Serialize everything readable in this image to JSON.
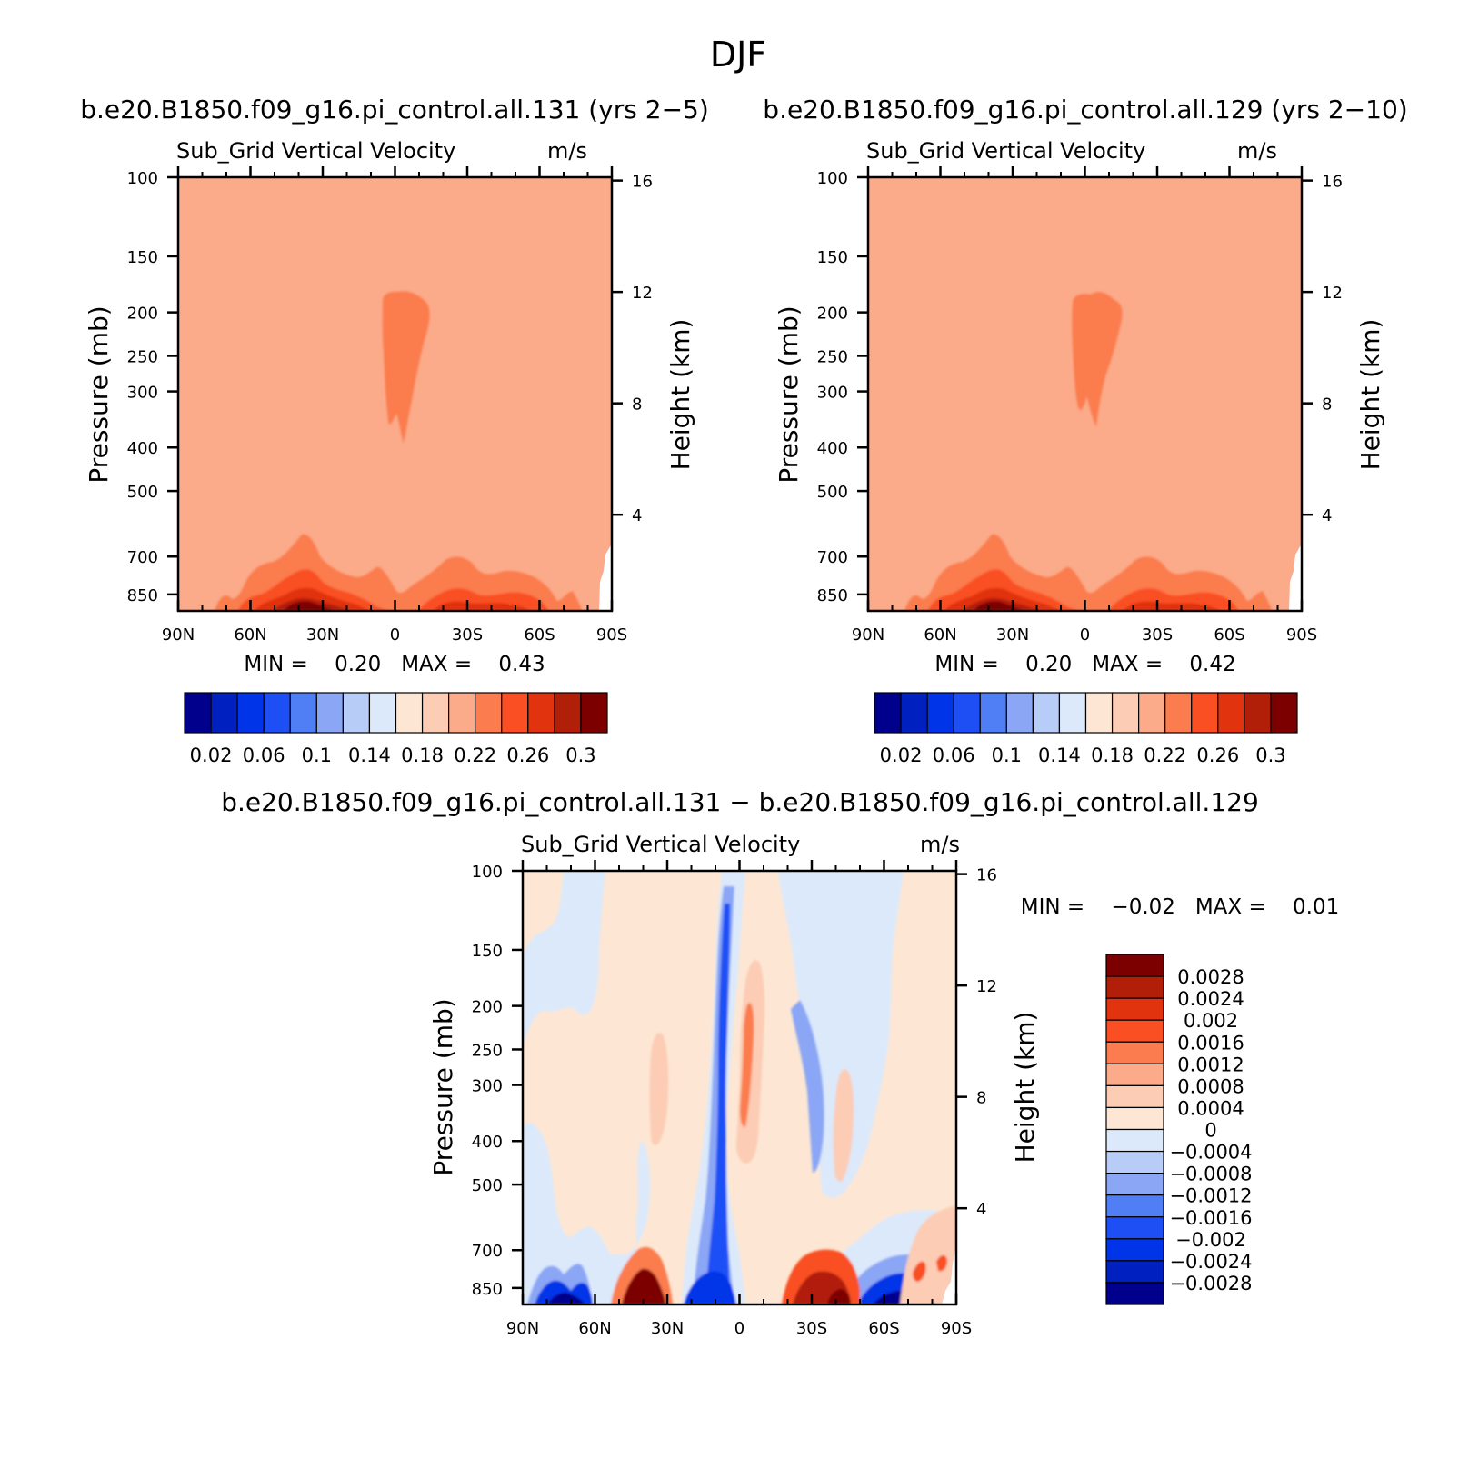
{
  "figure": {
    "title": "DJF"
  },
  "colors": {
    "seq_palette": [
      "#00008c",
      "#0020c0",
      "#0034e8",
      "#1e4ff5",
      "#4f7ef5",
      "#8aa6f5",
      "#b7cdf7",
      "#dbe9fb",
      "#fde7d4",
      "#fcccb4",
      "#fbab8a",
      "#fb7c4e",
      "#f94f22",
      "#e0330e",
      "#b21f08",
      "#7d0000"
    ],
    "div_palette": [
      "#00008c",
      "#0020c0",
      "#0034e8",
      "#1e4ff5",
      "#4f7ef5",
      "#8aa6f5",
      "#b7cdf7",
      "#dbe9fb",
      "#fde7d4",
      "#fcccb4",
      "#fbab8a",
      "#fb7c4e",
      "#f94f22",
      "#e0330e",
      "#b21f08",
      "#7d0000"
    ]
  },
  "panels": {
    "p1": {
      "case_title": "b.e20.B1850.f09_g16.pi_control.all.131 (yrs 2−5)",
      "left_string": "Sub_Grid Vertical Velocity",
      "right_string": "m/s",
      "min_max": "MIN =    0.20   MAX =    0.43"
    },
    "p2": {
      "case_title": "b.e20.B1850.f09_g16.pi_control.all.129 (yrs 2−10)",
      "left_string": "Sub_Grid Vertical Velocity",
      "right_string": "m/s",
      "min_max": "MIN =    0.20   MAX =    0.42"
    },
    "p3": {
      "case_title": "b.e20.B1850.f09_g16.pi_control.all.131 − b.e20.B1850.f09_g16.pi_control.all.129",
      "left_string": "Sub_Grid Vertical Velocity",
      "right_string": "m/s",
      "min_max": "MIN =    −0.02   MAX =    0.01"
    }
  },
  "chart_data": [
    {
      "type": "heatmap",
      "panel": "p1",
      "title": "b.e20.B1850.f09_g16.pi_control.all.131 (yrs 2−5)",
      "xlabel": "",
      "ylabel": "Pressure (mb)",
      "y2label": "Height (km)",
      "x_ticks": [
        "90N",
        "60N",
        "30N",
        "0",
        "30S",
        "60S",
        "90S"
      ],
      "x_tick_values": [
        90,
        60,
        30,
        0,
        -30,
        -60,
        -90
      ],
      "y_ticks": [
        100,
        150,
        200,
        250,
        300,
        400,
        500,
        700,
        850
      ],
      "y2_ticks": [
        16,
        12,
        8,
        4
      ],
      "ylim": [
        100,
        925
      ],
      "y_scale": "log",
      "colorbar_labels": [
        "0.02",
        "0.06",
        "0.1",
        "0.14",
        "0.18",
        "0.22",
        "0.26",
        "0.3"
      ],
      "min": 0.2,
      "max": 0.43,
      "background_value": 0.21,
      "features": [
        {
          "desc": "upper tropical maximum",
          "lat": 0,
          "p": [
            190,
            380
          ],
          "value": 0.23
        },
        {
          "desc": "NH subtropical boundary-layer maximum",
          "lat": 38,
          "p": [
            640,
            925
          ],
          "value": 0.31
        },
        {
          "desc": "SH midlatitude boundary-layer maximum",
          "lat": -45,
          "p": [
            690,
            925
          ],
          "value": 0.27
        }
      ]
    },
    {
      "type": "heatmap",
      "panel": "p2",
      "title": "b.e20.B1850.f09_g16.pi_control.all.129 (yrs 2−10)",
      "xlabel": "",
      "ylabel": "Pressure (mb)",
      "y2label": "Height (km)",
      "x_ticks": [
        "90N",
        "60N",
        "30N",
        "0",
        "30S",
        "60S",
        "90S"
      ],
      "x_tick_values": [
        90,
        60,
        30,
        0,
        -30,
        -60,
        -90
      ],
      "y_ticks": [
        100,
        150,
        200,
        250,
        300,
        400,
        500,
        700,
        850
      ],
      "y2_ticks": [
        16,
        12,
        8,
        4
      ],
      "ylim": [
        100,
        925
      ],
      "y_scale": "log",
      "colorbar_labels": [
        "0.02",
        "0.06",
        "0.1",
        "0.14",
        "0.18",
        "0.22",
        "0.26",
        "0.3"
      ],
      "min": 0.2,
      "max": 0.42,
      "background_value": 0.21,
      "features": [
        {
          "desc": "upper tropical maximum",
          "lat": 0,
          "p": [
            190,
            360
          ],
          "value": 0.23
        },
        {
          "desc": "NH subtropical boundary-layer maximum",
          "lat": 38,
          "p": [
            640,
            925
          ],
          "value": 0.31
        },
        {
          "desc": "SH midlatitude boundary-layer maximum",
          "lat": -45,
          "p": [
            690,
            925
          ],
          "value": 0.27
        }
      ]
    },
    {
      "type": "heatmap",
      "panel": "p3",
      "title": "b.e20.B1850.f09_g16.pi_control.all.131 − b.e20.B1850.f09_g16.pi_control.all.129",
      "xlabel": "",
      "ylabel": "Pressure (mb)",
      "y2label": "Height (km)",
      "x_ticks": [
        "90N",
        "60N",
        "30N",
        "0",
        "30S",
        "60S",
        "90S"
      ],
      "x_tick_values": [
        90,
        60,
        30,
        0,
        -30,
        -60,
        -90
      ],
      "y_ticks": [
        100,
        150,
        200,
        250,
        300,
        400,
        500,
        700,
        850
      ],
      "y2_ticks": [
        16,
        12,
        8,
        4
      ],
      "ylim": [
        100,
        925
      ],
      "y_scale": "log",
      "colorbar_labels": [
        "0.0028",
        "0.0024",
        "0.002",
        "0.0016",
        "0.0012",
        "0.0008",
        "0.0004",
        "0",
        "−0.0004",
        "−0.0008",
        "−0.0012",
        "−0.0016",
        "−0.002",
        "−0.0024",
        "−0.0028"
      ],
      "min": -0.02,
      "max": 0.01,
      "features": [
        {
          "desc": "positive surface anomaly",
          "lat": 38,
          "p": [
            650,
            925
          ],
          "value": 0.003
        },
        {
          "desc": "negative surface anomaly",
          "lat": 65,
          "p": [
            760,
            925
          ],
          "value": -0.003
        },
        {
          "desc": "negative equatorial column",
          "lat": 7,
          "p": [
            130,
            925
          ],
          "value": -0.0024
        },
        {
          "desc": "positive column south of equator",
          "lat": -2,
          "p": [
            180,
            450
          ],
          "value": 0.0016
        },
        {
          "desc": "positive surface anomaly",
          "lat": -35,
          "p": [
            700,
            925
          ],
          "value": 0.003
        },
        {
          "desc": "negative surface anomaly",
          "lat": -60,
          "p": [
            760,
            925
          ],
          "value": -0.0028
        }
      ]
    }
  ]
}
